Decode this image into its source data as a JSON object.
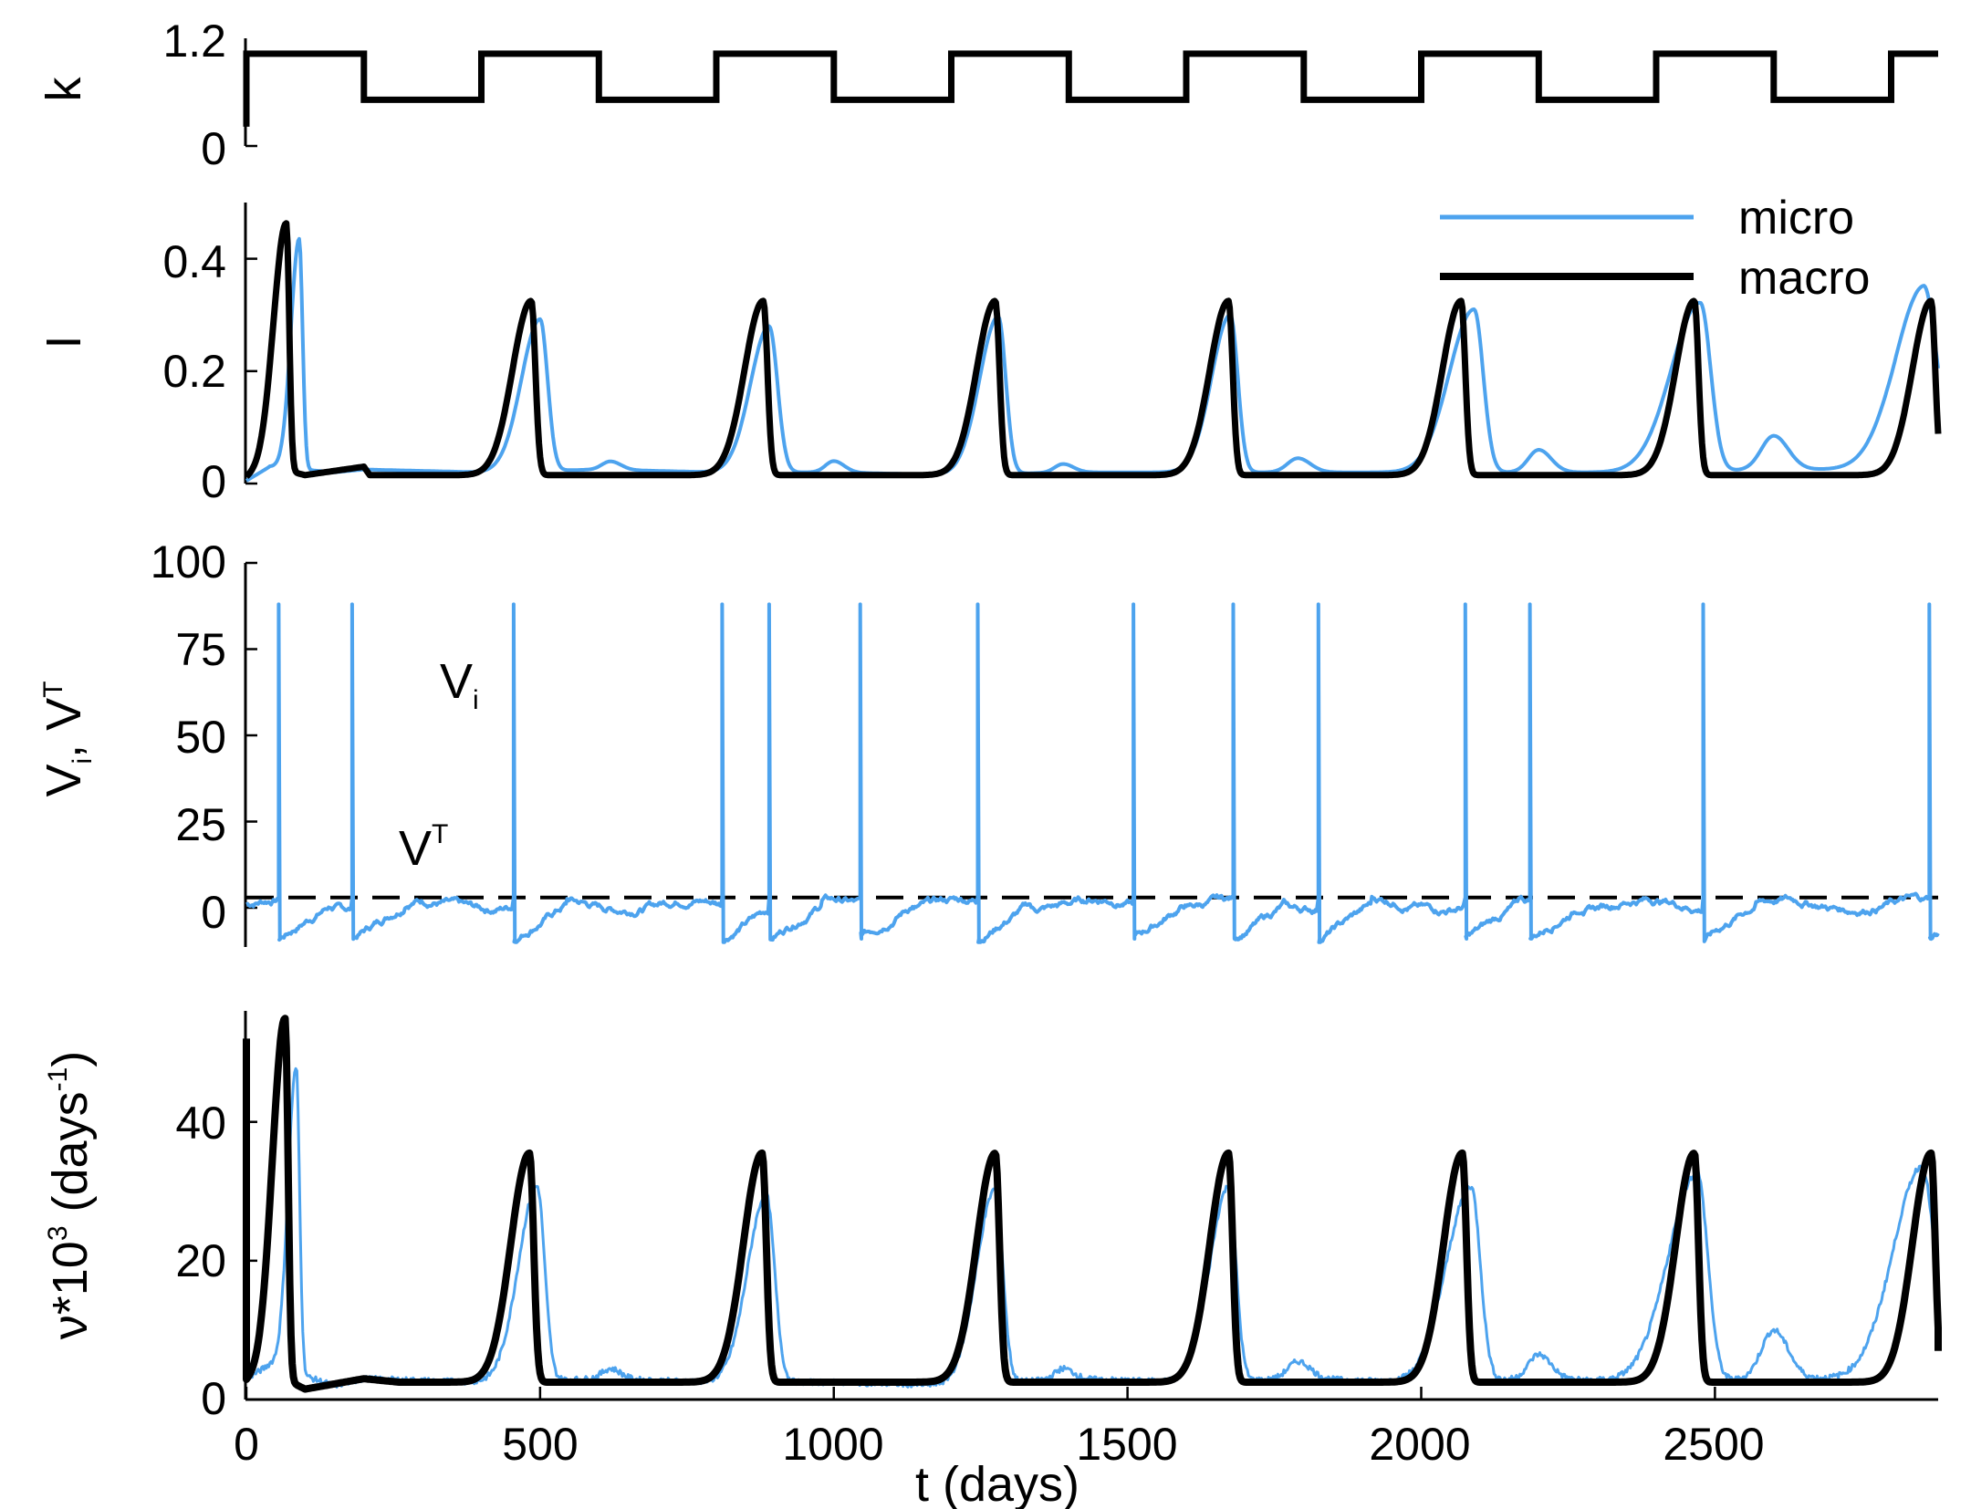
{
  "colors": {
    "micro": "#4da3ee",
    "macro": "#000000",
    "threshold": "#000000"
  },
  "x_axis": {
    "label": "t (days)",
    "ticks": [
      "0",
      "500",
      "1000",
      "1500",
      "2000",
      "2500"
    ],
    "tick_values": [
      0,
      500,
      1000,
      1500,
      2000,
      2500
    ],
    "range": [
      0,
      2880
    ]
  },
  "panels": {
    "k": {
      "ylabel": "k",
      "ticks": [
        "0",
        "1.2"
      ],
      "tick_values": [
        0,
        1.2
      ]
    },
    "I": {
      "ylabel": "I",
      "ticks": [
        "0",
        "0.2",
        "0.4"
      ],
      "tick_values": [
        0,
        0.2,
        0.4
      ]
    },
    "V": {
      "ylabel_main": "V",
      "ylabel_sub": "i",
      "ylabel_sep": ", V",
      "ylabel_sup": "T",
      "ticks": [
        "0",
        "25",
        "50",
        "75",
        "100"
      ],
      "tick_values": [
        0,
        25,
        50,
        75,
        100
      ],
      "annot_vi_main": "V",
      "annot_vi_sub": "i",
      "annot_vt_main": "V",
      "annot_vt_sup": "T"
    },
    "nu": {
      "ylabel_prefix": "ν*10",
      "ylabel_exp": "3",
      "ylabel_mid": " (days",
      "ylabel_exp2": "-1",
      "ylabel_suffix": ")",
      "ticks": [
        "0",
        "20",
        "40"
      ],
      "tick_values": [
        0,
        20,
        40
      ]
    }
  },
  "legend": {
    "micro": "micro",
    "macro": "macro"
  },
  "chart_data": [
    {
      "type": "line",
      "ylabel": "k",
      "xlim": [
        0,
        2880
      ],
      "ylim": [
        0,
        1.4
      ],
      "series": [
        {
          "x": [
            0,
            0,
            200,
            200,
            400,
            400,
            600,
            600,
            800,
            800,
            1000,
            1000,
            1200,
            1200,
            1400,
            1400,
            1600,
            1600,
            1800,
            1800,
            2000,
            2000,
            2200,
            2200,
            2400,
            2400,
            2600,
            2600,
            2800,
            2800,
            2880
          ],
          "y": [
            0.25,
            1.2,
            1.2,
            0.6,
            0.6,
            1.2,
            1.2,
            0.6,
            0.6,
            1.2,
            1.2,
            0.6,
            0.6,
            1.2,
            1.2,
            0.6,
            0.6,
            1.2,
            1.2,
            0.6,
            0.6,
            1.2,
            1.2,
            0.6,
            0.6,
            1.2,
            1.2,
            0.6,
            0.6,
            1.2,
            1.2
          ]
        }
      ]
    },
    {
      "type": "line",
      "ylabel": "I",
      "xlim": [
        0,
        2880
      ],
      "ylim": [
        0,
        0.5
      ],
      "series": [
        {
          "name": "micro",
          "baseline": [
            [
              0,
              0.005
            ],
            [
              40,
              0.03
            ],
            [
              150,
              0.02
            ],
            [
              200,
              0.025
            ],
            [
              400,
              0.02
            ],
            [
              600,
              0.025
            ],
            [
              800,
              0.02
            ],
            [
              1000,
              0.02
            ],
            [
              1200,
              0.015
            ],
            [
              1400,
              0.02
            ],
            [
              1600,
              0.02
            ],
            [
              1800,
              0.02
            ],
            [
              2000,
              0.02
            ],
            [
              2200,
              0.02
            ],
            [
              2400,
              0.02
            ],
            [
              2600,
              0.025
            ],
            [
              2800,
              0.025
            ],
            [
              2880,
              0.05
            ]
          ],
          "peaks": [
            {
              "t": 90,
              "h": 0.41,
              "r": 20,
              "d": 8
            },
            {
              "t": 500,
              "h": 0.27,
              "r": 45,
              "d": 18
            },
            {
              "t": 620,
              "h": 0.015,
              "r": 20,
              "d": 25
            },
            {
              "t": 890,
              "h": 0.26,
              "r": 45,
              "d": 20
            },
            {
              "t": 1000,
              "h": 0.02,
              "r": 20,
              "d": 25
            },
            {
              "t": 1280,
              "h": 0.28,
              "r": 45,
              "d": 18
            },
            {
              "t": 1390,
              "h": 0.015,
              "r": 20,
              "d": 25
            },
            {
              "t": 1675,
              "h": 0.28,
              "r": 45,
              "d": 18
            },
            {
              "t": 1790,
              "h": 0.025,
              "r": 25,
              "d": 30
            },
            {
              "t": 2090,
              "h": 0.29,
              "r": 60,
              "d": 22
            },
            {
              "t": 2200,
              "h": 0.04,
              "r": 25,
              "d": 30
            },
            {
              "t": 2475,
              "h": 0.3,
              "r": 70,
              "d": 25
            },
            {
              "t": 2600,
              "h": 0.06,
              "r": 30,
              "d": 35
            },
            {
              "t": 2855,
              "h": 0.31,
              "r": 70,
              "d": 30
            }
          ]
        },
        {
          "name": "macro",
          "baseline": [
            [
              0,
              0.01
            ],
            [
              40,
              0.03
            ],
            [
              100,
              0.015
            ],
            [
              200,
              0.03
            ],
            [
              210,
              0.015
            ],
            [
              400,
              0.015
            ],
            [
              600,
              0.015
            ],
            [
              800,
              0.015
            ],
            [
              1000,
              0.015
            ],
            [
              1200,
              0.015
            ],
            [
              1400,
              0.015
            ],
            [
              1600,
              0.015
            ],
            [
              1800,
              0.015
            ],
            [
              2000,
              0.015
            ],
            [
              2200,
              0.015
            ],
            [
              2400,
              0.015
            ],
            [
              2600,
              0.015
            ],
            [
              2800,
              0.015
            ],
            [
              2880,
              0.015
            ]
          ],
          "peaks": [
            {
              "t": 68,
              "h": 0.44,
              "r": 30,
              "d": 7
            },
            {
              "t": 485,
              "h": 0.31,
              "r": 45,
              "d": 10
            },
            {
              "t": 880,
              "h": 0.31,
              "r": 45,
              "d": 10
            },
            {
              "t": 1275,
              "h": 0.31,
              "r": 45,
              "d": 10
            },
            {
              "t": 1672,
              "h": 0.31,
              "r": 45,
              "d": 10
            },
            {
              "t": 2068,
              "h": 0.31,
              "r": 45,
              "d": 10
            },
            {
              "t": 2465,
              "h": 0.31,
              "r": 45,
              "d": 10
            },
            {
              "t": 2868,
              "h": 0.31,
              "r": 45,
              "d": 10
            }
          ]
        }
      ]
    },
    {
      "type": "line",
      "ylabel": "Vi, VT",
      "xlim": [
        0,
        2880
      ],
      "ylim": [
        -10,
        100
      ],
      "threshold": 3,
      "series": [
        {
          "name": "Vi",
          "spike_peak": 88,
          "spike_times": [
            55,
            180,
            455,
            810,
            890,
            1045,
            1245,
            1510,
            1680,
            1825,
            2075,
            2185,
            2480,
            2865
          ],
          "noise_seed": 7,
          "reset_level": -9,
          "recovery_days": 90
        }
      ]
    },
    {
      "type": "line",
      "ylabel": "ν*10^3 (days^-1)",
      "xlim": [
        0,
        2880
      ],
      "ylim": [
        0,
        56
      ],
      "series": [
        {
          "name": "micro",
          "baseline": [
            [
              0,
              3
            ],
            [
              40,
              5
            ],
            [
              150,
              2
            ],
            [
              200,
              3
            ],
            [
              400,
              2.5
            ],
            [
              600,
              3
            ],
            [
              800,
              2.5
            ],
            [
              1000,
              2.5
            ],
            [
              1200,
              2
            ],
            [
              1400,
              3
            ],
            [
              1600,
              2.5
            ],
            [
              1800,
              3
            ],
            [
              2000,
              2.5
            ],
            [
              2200,
              3
            ],
            [
              2400,
              2.5
            ],
            [
              2600,
              3
            ],
            [
              2800,
              3
            ],
            [
              2880,
              4
            ]
          ],
          "peaks": [
            {
              "t": 85,
              "h": 44,
              "r": 20,
              "d": 8
            },
            {
              "t": 495,
              "h": 28,
              "r": 45,
              "d": 18
            },
            {
              "t": 620,
              "h": 1.5,
              "r": 20,
              "d": 25
            },
            {
              "t": 885,
              "h": 27,
              "r": 45,
              "d": 20
            },
            {
              "t": 1275,
              "h": 28,
              "r": 45,
              "d": 18
            },
            {
              "t": 1390,
              "h": 1.5,
              "r": 20,
              "d": 25
            },
            {
              "t": 1672,
              "h": 28,
              "r": 45,
              "d": 18
            },
            {
              "t": 1790,
              "h": 2.5,
              "r": 25,
              "d": 30
            },
            {
              "t": 2085,
              "h": 28,
              "r": 60,
              "d": 22
            },
            {
              "t": 2200,
              "h": 3.5,
              "r": 25,
              "d": 30
            },
            {
              "t": 2470,
              "h": 30,
              "r": 70,
              "d": 25
            },
            {
              "t": 2600,
              "h": 7,
              "r": 30,
              "d": 35
            },
            {
              "t": 2852,
              "h": 30,
              "r": 70,
              "d": 30
            }
          ]
        },
        {
          "name": "macro",
          "baseline": [
            [
              0,
              2.5
            ],
            [
              40,
              4
            ],
            [
              100,
              1.5
            ],
            [
              200,
              3
            ],
            [
              260,
              2.5
            ],
            [
              400,
              2.5
            ],
            [
              600,
              2.5
            ],
            [
              800,
              2.5
            ],
            [
              1000,
              2.5
            ],
            [
              1200,
              2.5
            ],
            [
              1400,
              2.5
            ],
            [
              1600,
              2.5
            ],
            [
              1800,
              2.5
            ],
            [
              2000,
              2.5
            ],
            [
              2200,
              2.5
            ],
            [
              2400,
              2.5
            ],
            [
              2600,
              2.5
            ],
            [
              2800,
              2.5
            ],
            [
              2880,
              2.5
            ]
          ],
          "spike_start": {
            "t": 0,
            "v": 52
          },
          "peaks": [
            {
              "t": 66,
              "h": 52,
              "r": 30,
              "d": 7
            },
            {
              "t": 482,
              "h": 33,
              "r": 45,
              "d": 10
            },
            {
              "t": 878,
              "h": 33,
              "r": 45,
              "d": 10
            },
            {
              "t": 1275,
              "h": 33,
              "r": 45,
              "d": 10
            },
            {
              "t": 1672,
              "h": 33,
              "r": 45,
              "d": 10
            },
            {
              "t": 2070,
              "h": 33,
              "r": 45,
              "d": 10
            },
            {
              "t": 2465,
              "h": 33,
              "r": 45,
              "d": 10
            },
            {
              "t": 2868,
              "h": 33,
              "r": 45,
              "d": 10
            }
          ],
          "end_value": 7
        }
      ]
    }
  ]
}
